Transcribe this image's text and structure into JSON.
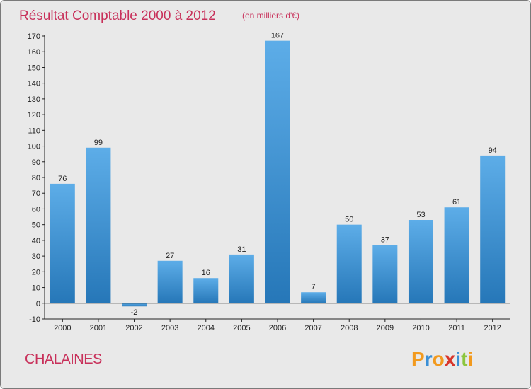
{
  "chart_data": {
    "type": "bar",
    "title": "Résultat Comptable 2000 à 2012",
    "unit": "(en milliers d'€)",
    "categories": [
      "2000",
      "2001",
      "2002",
      "2003",
      "2004",
      "2005",
      "2006",
      "2007",
      "2008",
      "2009",
      "2010",
      "2011",
      "2012"
    ],
    "values": [
      76,
      99,
      -2,
      27,
      16,
      31,
      167,
      7,
      50,
      37,
      53,
      61,
      94
    ],
    "ylim": [
      -10,
      170
    ],
    "yticks": [
      -10,
      0,
      10,
      20,
      30,
      40,
      50,
      60,
      70,
      80,
      90,
      100,
      110,
      120,
      130,
      140,
      150,
      160,
      170
    ],
    "grid": false,
    "xlabel": "",
    "ylabel": ""
  },
  "commune": "CHALAINES",
  "brand": {
    "name": "Proxiti",
    "letters": [
      "P",
      "r",
      "o",
      "x",
      "i",
      "t",
      "i"
    ],
    "letter_colors": [
      "#f29a1e",
      "#3a8fd6",
      "#f29a1e",
      "#d8352a",
      "#3a8fd6",
      "#8cc63f",
      "#f29a1e"
    ]
  },
  "colors": {
    "bar_top": "#5dade8",
    "bar_bottom": "#2677b8",
    "title": "#c8305a",
    "background": "#e9e9e9"
  }
}
